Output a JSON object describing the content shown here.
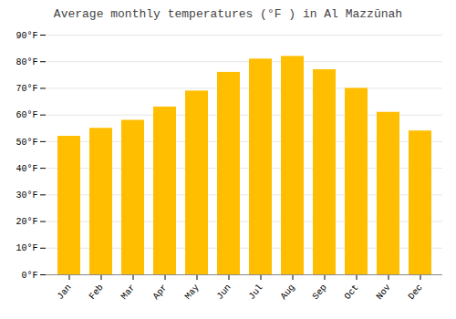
{
  "chart_data": {
    "type": "bar",
    "title": "Average monthly temperatures (°F ) in Al Mazzūnah",
    "categories": [
      "Jan",
      "Feb",
      "Mar",
      "Apr",
      "May",
      "Jun",
      "Jul",
      "Aug",
      "Sep",
      "Oct",
      "Nov",
      "Dec"
    ],
    "values": [
      52,
      55,
      58,
      63,
      69,
      76,
      81,
      82,
      77,
      70,
      61,
      54
    ],
    "color": "#FFBE00",
    "ylim": [
      0,
      90
    ],
    "yticks": [
      {
        "value": 0,
        "label": "0°F"
      },
      {
        "value": 10,
        "label": "10°F"
      },
      {
        "value": 20,
        "label": "20°F"
      },
      {
        "value": 30,
        "label": "30°F"
      },
      {
        "value": 40,
        "label": "40°F"
      },
      {
        "value": 50,
        "label": "50°F"
      },
      {
        "value": 60,
        "label": "60°F"
      },
      {
        "value": 70,
        "label": "70°F"
      },
      {
        "value": 80,
        "label": "80°F"
      },
      {
        "value": 90,
        "label": "90°F"
      }
    ],
    "grid": true
  }
}
